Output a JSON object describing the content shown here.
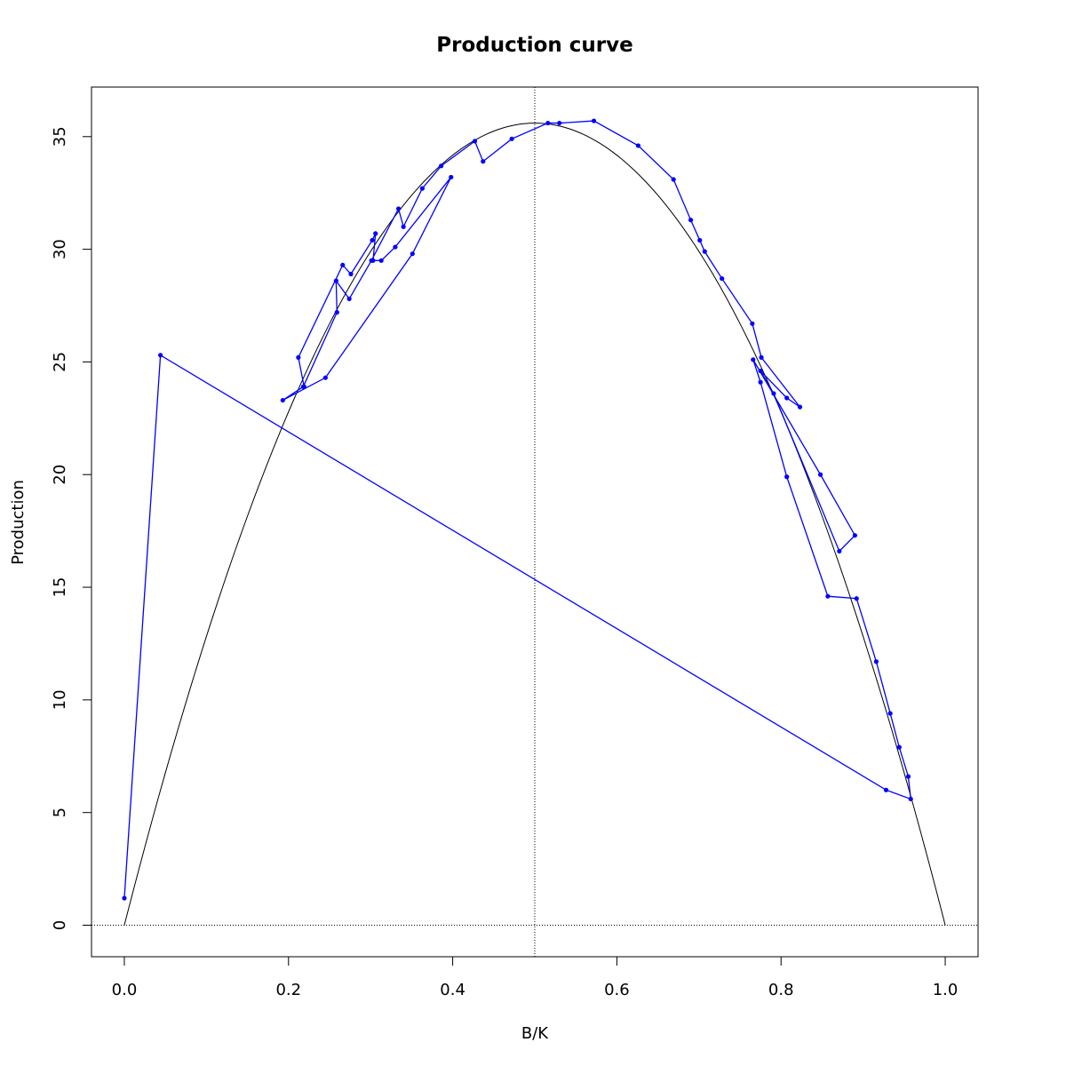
{
  "chart_data": {
    "type": "line",
    "title": "Production curve",
    "xlabel": "B/K",
    "ylabel": "Production",
    "xlim": [
      -0.04,
      1.04
    ],
    "ylim": [
      -1.4,
      37.2
    ],
    "x_ticks": [
      0.0,
      0.2,
      0.4,
      0.6,
      0.8,
      1.0
    ],
    "x_tick_labels": [
      "0.0",
      "0.2",
      "0.4",
      "0.6",
      "0.8",
      "1.0"
    ],
    "y_ticks": [
      0,
      5,
      10,
      15,
      20,
      25,
      30,
      35
    ],
    "y_tick_labels": [
      "0",
      "5",
      "10",
      "15",
      "20",
      "25",
      "30",
      "35"
    ],
    "grid": false,
    "reference_lines": {
      "vertical_x": 0.5,
      "horizontal_y": 0,
      "style": "dotted"
    },
    "curve": {
      "type": "parabola",
      "r_times_k_over_4": 35.6,
      "x_range": [
        0,
        1
      ],
      "color": "#000000"
    },
    "series": [
      {
        "color": "#0000ff",
        "x": [
          0.0,
          0.044,
          0.928,
          0.958,
          0.955,
          0.944,
          0.933,
          0.916,
          0.892,
          0.857,
          0.807,
          0.775,
          0.766,
          0.848,
          0.89,
          0.871,
          0.791,
          0.775,
          0.807,
          0.823,
          0.776,
          0.765,
          0.728,
          0.707,
          0.701,
          0.69,
          0.669,
          0.626,
          0.572,
          0.53,
          0.516,
          0.472,
          0.437,
          0.427,
          0.386,
          0.363,
          0.34,
          0.334,
          0.301,
          0.274,
          0.258,
          0.259,
          0.218,
          0.193,
          0.245,
          0.351,
          0.398,
          0.33,
          0.313,
          0.303,
          0.306,
          0.302,
          0.276,
          0.266,
          0.212,
          0.219
        ],
        "y": [
          1.2,
          25.3,
          6.0,
          5.6,
          6.6,
          7.9,
          9.4,
          11.7,
          14.5,
          14.6,
          19.9,
          24.1,
          25.1,
          20.0,
          17.3,
          16.6,
          23.6,
          24.6,
          23.4,
          23.0,
          25.2,
          26.7,
          28.7,
          29.9,
          30.4,
          31.3,
          33.1,
          34.6,
          35.7,
          35.6,
          35.6,
          34.9,
          33.9,
          34.8,
          33.7,
          32.7,
          31.0,
          31.8,
          29.5,
          27.8,
          28.6,
          27.2,
          23.9,
          23.3,
          24.3,
          29.8,
          33.2,
          30.1,
          29.5,
          29.5,
          30.7,
          30.4,
          28.9,
          29.3,
          25.2,
          23.9
        ]
      }
    ]
  }
}
